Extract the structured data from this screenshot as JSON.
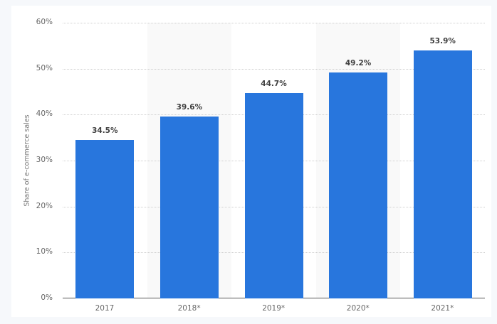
{
  "chart_data": {
    "type": "bar",
    "title": "",
    "xlabel": "",
    "ylabel": "Share of e-commerce sales",
    "categories": [
      "2017",
      "2018*",
      "2019*",
      "2020*",
      "2021*"
    ],
    "values": [
      34.5,
      39.6,
      44.7,
      49.2,
      53.9
    ],
    "value_labels": [
      "34.5%",
      "39.6%",
      "44.7%",
      "49.2%",
      "53.9%"
    ],
    "ylim": [
      0,
      60
    ],
    "yticks": [
      "0%",
      "10%",
      "20%",
      "30%",
      "40%",
      "50%",
      "60%"
    ],
    "grid": true,
    "legend": "none",
    "bar_color": "#2876dd"
  }
}
